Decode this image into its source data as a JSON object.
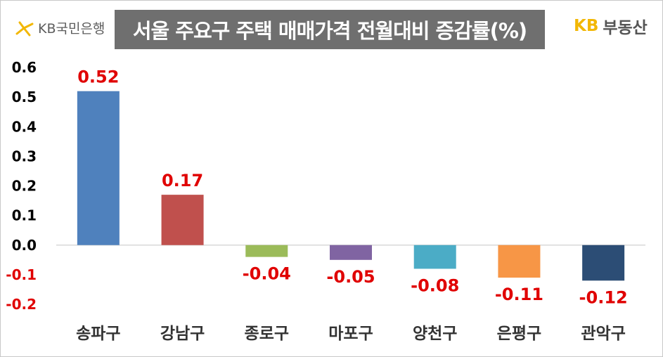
{
  "header": {
    "bank_logo_text": "KB국민은행",
    "title": "서울 주요구 주택 매매가격 전월대비 증감률(%)",
    "realty_logo_kb": "KB",
    "realty_logo_text": "부동산"
  },
  "colors": {
    "title_bg": "#6f6f6f",
    "label_positive": "#e00000",
    "label_negative": "#e00000",
    "kb_yellow": "#f2b705"
  },
  "chart_data": {
    "type": "bar",
    "title": "서울 주요구 주택 매매가격 전월대비 증감률(%)",
    "categories": [
      "송파구",
      "강남구",
      "종로구",
      "마포구",
      "양천구",
      "은평구",
      "관악구"
    ],
    "values": [
      0.52,
      0.17,
      -0.04,
      -0.05,
      -0.08,
      -0.11,
      -0.12
    ],
    "value_labels": [
      "0.52",
      "0.17",
      "-0.04",
      "-0.05",
      "-0.08",
      "-0.11",
      "-0.12"
    ],
    "bar_colors": [
      "#4f81bd",
      "#c0504d",
      "#9bbb59",
      "#8064a2",
      "#4bacc6",
      "#f79646",
      "#2c4d75"
    ],
    "yticks": [
      0.6,
      0.5,
      0.4,
      0.3,
      0.2,
      0.1,
      0.0,
      -0.1,
      -0.2
    ],
    "ytick_labels": [
      "0.6",
      "0.5",
      "0.4",
      "0.3",
      "0.2",
      "0.1",
      "0.0",
      "-0.1",
      "-0.2"
    ],
    "ytick_colors": [
      "#000000",
      "#000000",
      "#000000",
      "#000000",
      "#000000",
      "#000000",
      "#000000",
      "#e00000",
      "#e00000"
    ],
    "ylim": [
      -0.2,
      0.6
    ],
    "grid": false,
    "legend": "none",
    "xlabel": "",
    "ylabel": ""
  }
}
